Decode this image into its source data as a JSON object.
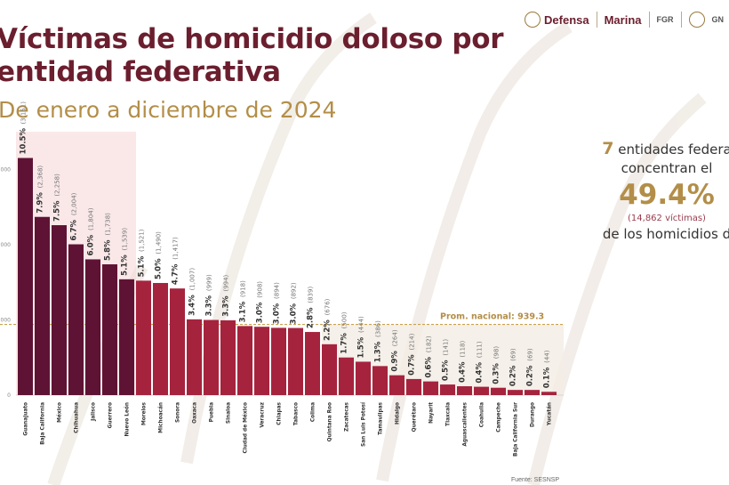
{
  "header": {
    "logo_defensa": "Defensa",
    "logo_marina": "Marina",
    "logo_fgr": "FGR",
    "logo_gn": "GN"
  },
  "title_line1": "Víctimas de homicidio doloso por",
  "title_line2": "entidad federativa",
  "subtitle": "De enero a diciembre de 2024",
  "side_panel": {
    "count": "7",
    "line1": "entidades federa",
    "line2": "concentran el",
    "percent": "49.4%",
    "victims": "(14,862 víctimas)",
    "line3": "de los homicidios d"
  },
  "source": "Fuente: SESNSP",
  "colors": {
    "top7": "#5f1334",
    "rest": "#a6233e",
    "highlight": "#f6d5d7",
    "title": "#6b1e2e",
    "gold": "#b38e48"
  },
  "chart_data": {
    "type": "bar",
    "title": "Víctimas de homicidio doloso por entidad federativa",
    "subtitle": "De enero a diciembre de 2024",
    "xlabel": "",
    "ylabel": "",
    "ylim": [
      0,
      3500
    ],
    "yticks": [
      0,
      1000,
      2000,
      3000
    ],
    "ytick_labels": [
      "0",
      ",000",
      ",000",
      ",000"
    ],
    "national_average": 939.3,
    "national_average_label": "Prom. nacional: 939.3",
    "highlight_count": 7,
    "categories": [
      "Guanajuato",
      "Baja California",
      "México",
      "Chihuahua",
      "Jalisco",
      "Guerrero",
      "Nuevo León",
      "Morelos",
      "Michoacán",
      "Sonora",
      "Oaxaca",
      "Puebla",
      "Sinaloa",
      "Ciudad de México",
      "Veracruz",
      "Chiapas",
      "Tabasco",
      "Colima",
      "Quintana Roo",
      "Zacatecas",
      "San Luis Potosí",
      "Tamaulipas",
      "Hidalgo",
      "Querétaro",
      "Nayarit",
      "Tlaxcala",
      "Aguascalientes",
      "Coahuila",
      "Campeche",
      "Baja California Sur",
      "Durango",
      "Yucatán"
    ],
    "values": [
      3151,
      2368,
      2258,
      2004,
      1804,
      1738,
      1539,
      1521,
      1490,
      1417,
      1007,
      999,
      994,
      918,
      908,
      894,
      892,
      839,
      676,
      500,
      444,
      386,
      264,
      214,
      182,
      141,
      118,
      111,
      98,
      69,
      69,
      44
    ],
    "value_labels": [
      "(3,151)",
      "(2,368)",
      "(2,258)",
      "(2,004)",
      "(1,804)",
      "(1,738)",
      "(1,539)",
      "(1,521)",
      "(1,490)",
      "(1,417)",
      "(1,007)",
      "(999)",
      "(994)",
      "(918)",
      "(908)",
      "(894)",
      "(892)",
      "(839)",
      "(676)",
      "(500)",
      "(444)",
      "(386)",
      "(264)",
      "(214)",
      "(182)",
      "(141)",
      "(118)",
      "(111)",
      "(98)",
      "(69)",
      "(69)",
      "(44)"
    ],
    "percents": [
      "10.5%",
      "7.9%",
      "7.5%",
      "6.7%",
      "6.0%",
      "5.8%",
      "5.1%",
      "5.1%",
      "5.0%",
      "4.7%",
      "3.4%",
      "3.3%",
      "3.3%",
      "3.1%",
      "3.0%",
      "3.0%",
      "3.0%",
      "2.8%",
      "2.2%",
      "1.7%",
      "1.5%",
      "1.3%",
      "0.9%",
      "0.7%",
      "0.6%",
      "0.5%",
      "0.4%",
      "0.4%",
      "0.3%",
      "0.2%",
      "0.2%",
      "0.1%"
    ]
  }
}
